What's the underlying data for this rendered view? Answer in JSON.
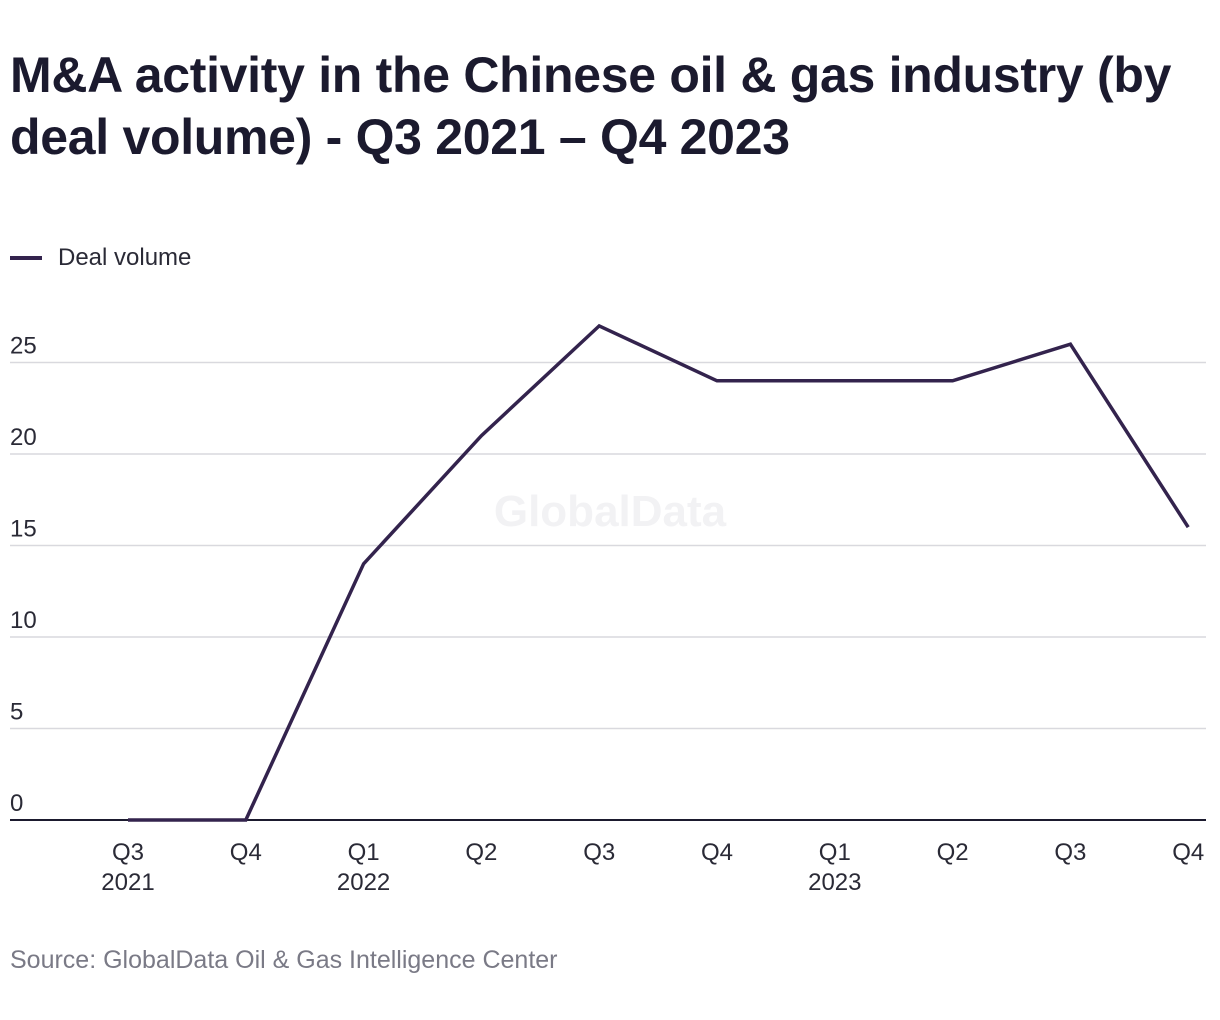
{
  "title": "M&A activity in the Chinese oil & gas industry (by deal volume) - Q3 2021 – Q4 2023",
  "legend": {
    "label": "Deal volume",
    "color": "#33234d"
  },
  "watermark": "GlobalData",
  "source": "Source: GlobalData Oil & Gas Intelligence Center",
  "chart_data": {
    "type": "line",
    "title": "M&A activity in the Chinese oil & gas industry (by deal volume) - Q3 2021 – Q4 2023",
    "xlabel": "",
    "ylabel": "",
    "categories": [
      "Q3 2021",
      "Q4 2021",
      "Q1 2022",
      "Q2 2022",
      "Q3 2022",
      "Q4 2022",
      "Q1 2023",
      "Q2 2023",
      "Q3 2023",
      "Q4 2023"
    ],
    "tick_labels": [
      {
        "quarter": "Q3",
        "year": "2021"
      },
      {
        "quarter": "Q4",
        "year": ""
      },
      {
        "quarter": "Q1",
        "year": "2022"
      },
      {
        "quarter": "Q2",
        "year": ""
      },
      {
        "quarter": "Q3",
        "year": ""
      },
      {
        "quarter": "Q4",
        "year": ""
      },
      {
        "quarter": "Q1",
        "year": "2023"
      },
      {
        "quarter": "Q2",
        "year": ""
      },
      {
        "quarter": "Q3",
        "year": ""
      },
      {
        "quarter": "Q4",
        "year": ""
      }
    ],
    "series": [
      {
        "name": "Deal volume",
        "color": "#33234d",
        "values": [
          0,
          0,
          14,
          21,
          27,
          24,
          24,
          24,
          26,
          16
        ]
      }
    ],
    "ylim": [
      0,
      25
    ],
    "yticks": [
      0,
      5,
      10,
      15,
      20,
      25
    ],
    "grid": true,
    "legend_position": "top-left"
  }
}
